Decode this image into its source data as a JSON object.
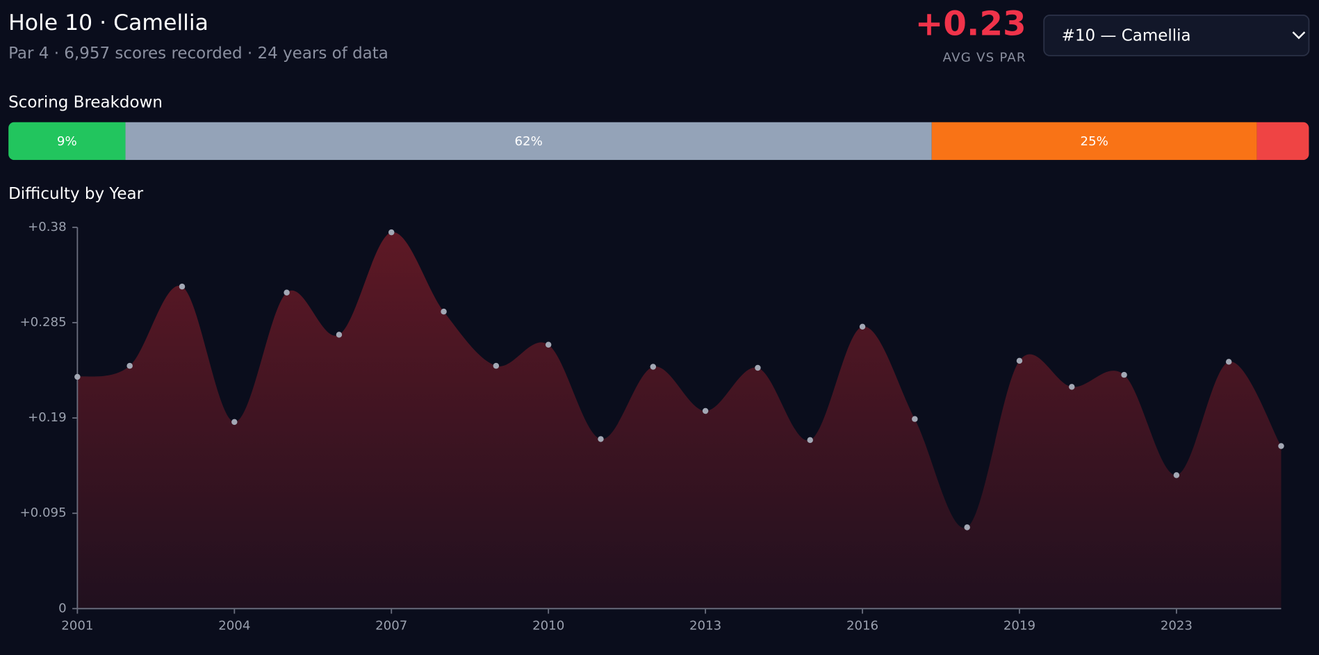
{
  "header": {
    "title": "Hole 10 · Camellia",
    "subtitle": "Par 4 · 6,957 scores recorded · 24 years of data",
    "stat": "+0.23",
    "stat_label": "AVG VS PAR",
    "select": "#10 — Camellia"
  },
  "breakdown": {
    "title": "Scoring Breakdown",
    "segments": [
      {
        "value": 9,
        "label": "9%",
        "color": "#22c55e"
      },
      {
        "value": 62,
        "label": "62%",
        "color": "#94a3b8"
      },
      {
        "value": 25,
        "label": "25%",
        "color": "#f97316"
      },
      {
        "value": 4,
        "color": "#ef4444"
      }
    ]
  },
  "chart_data": {
    "type": "area",
    "title": "Difficulty by Year",
    "categories": [
      "2001",
      null,
      null,
      "2004",
      null,
      null,
      "2007",
      null,
      null,
      "2010",
      null,
      null,
      "2013",
      null,
      null,
      "2016",
      null,
      null,
      "2019",
      null,
      null,
      "2023",
      null,
      null
    ],
    "values": [
      0.231,
      0.242,
      0.321,
      0.186,
      0.315,
      0.273,
      0.375,
      0.296,
      0.242,
      0.263,
      0.169,
      0.241,
      0.197,
      0.24,
      0.168,
      0.281,
      0.189,
      0.081,
      0.247,
      0.221,
      0.233,
      0.133,
      0.246,
      0.162
    ],
    "color": "#7a1c28",
    "marker_color": "#a3a8b5",
    "ylim": [
      0,
      0.38
    ],
    "yticks": [
      0,
      {
        "value": 0.095,
        "label": "+0.095"
      },
      {
        "value": 0.19,
        "label": "+0.19"
      },
      {
        "value": 0.285,
        "label": "+0.285"
      },
      {
        "value": 0.38,
        "label": "+0.38"
      }
    ]
  }
}
